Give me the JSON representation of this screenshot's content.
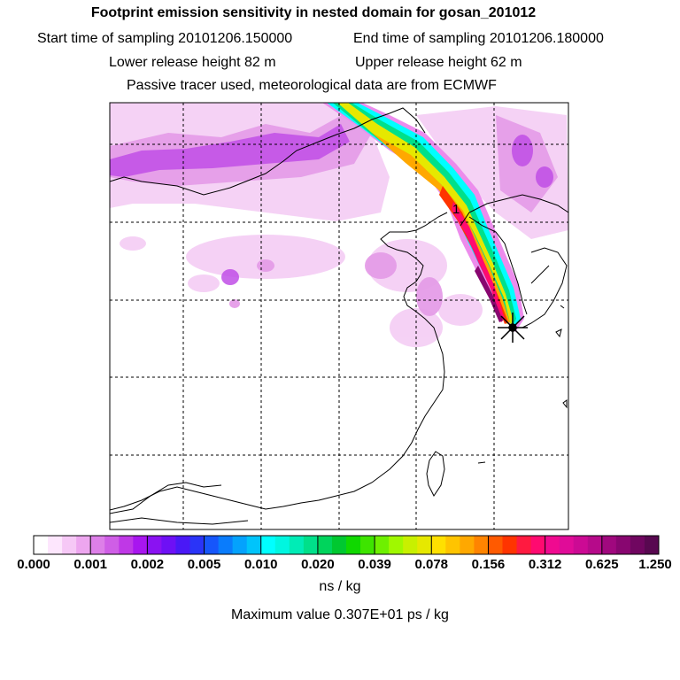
{
  "header": {
    "title": "Footprint emission sensitivity in nested domain for gosan_201012",
    "start_time": "Start time of sampling 20101206.150000",
    "end_time": "End time of sampling 20101206.180000",
    "lower_height": "Lower release height   82 m",
    "upper_height": "Upper release height   62 m",
    "tracer_note": "Passive tracer used, meteorological data are from ECMWF"
  },
  "map": {
    "marker_label": "1",
    "release_site": "gosan"
  },
  "colorbar": {
    "ticks": [
      "0.000",
      "0.001",
      "0.002",
      "0.005",
      "0.010",
      "0.020",
      "0.039",
      "0.078",
      "0.156",
      "0.312",
      "0.625",
      "1.250"
    ],
    "colors": [
      "#ffffff",
      "#fde6fd",
      "#f6c8f6",
      "#eda6ef",
      "#dd7fe8",
      "#cf5ee6",
      "#bf38e6",
      "#a816ef",
      "#8a12f2",
      "#6e10f5",
      "#4a18f6",
      "#2a34f8",
      "#1656fb",
      "#0a7cfc",
      "#04a2fd",
      "#00c4fb",
      "#00ffff",
      "#00f6e0",
      "#00ecb6",
      "#00e08a",
      "#00d45c",
      "#00c830",
      "#10d800",
      "#3ee400",
      "#6ef000",
      "#a0f800",
      "#c8f000",
      "#e6e800",
      "#ffe000",
      "#ffc400",
      "#ffa800",
      "#ff8400",
      "#ff5a00",
      "#ff3400",
      "#ff1a40",
      "#ff0a70",
      "#f00a90",
      "#e00c98",
      "#cc0a94",
      "#b60a8a",
      "#a0087e",
      "#880670",
      "#700660",
      "#580850"
    ],
    "units": "ns / kg"
  },
  "max_value": "Maximum value  0.307E+01 ps / kg"
}
